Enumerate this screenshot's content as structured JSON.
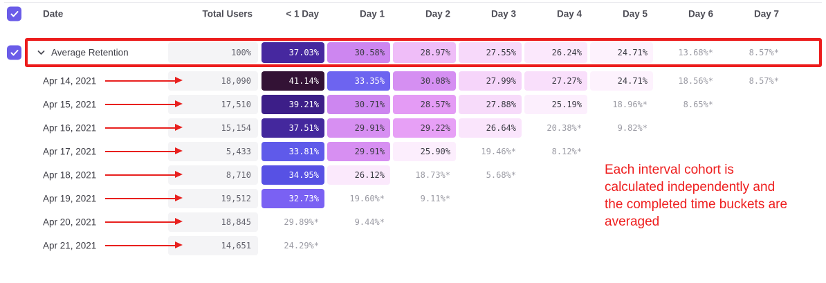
{
  "header": {
    "date_label": "Date",
    "total_label": "Total Users",
    "day_columns": [
      "< 1 Day",
      "Day 1",
      "Day 2",
      "Day 3",
      "Day 4",
      "Day 5",
      "Day 6",
      "Day 7"
    ]
  },
  "average_row": {
    "label": "Average Retention",
    "total": "100%",
    "cells": [
      {
        "t": "37.03%",
        "bg": "#46289F",
        "fg": "#FFFFFF"
      },
      {
        "t": "30.58%",
        "bg": "#CD86F0"
      },
      {
        "t": "28.97%",
        "bg": "#EFBDF8"
      },
      {
        "t": "27.55%",
        "bg": "#F7D9FA"
      },
      {
        "t": "26.24%",
        "bg": "#FBE8FC"
      },
      {
        "t": "24.71%",
        "bg": "#FDF2FD"
      },
      {
        "t": "13.68%*"
      },
      {
        "t": "8.57%*"
      }
    ]
  },
  "rows": [
    {
      "date": "Apr 14, 2021",
      "total": "18,090",
      "cells": [
        {
          "t": "41.14%",
          "bg": "#331235",
          "fg": "#FFFFFF"
        },
        {
          "t": "33.35%",
          "bg": "#6D64F0",
          "fg": "#FFFFFF"
        },
        {
          "t": "30.08%",
          "bg": "#D58FF2"
        },
        {
          "t": "27.99%",
          "bg": "#F6D5FA"
        },
        {
          "t": "27.27%",
          "bg": "#F9DFFB"
        },
        {
          "t": "24.71%",
          "bg": "#FDF2FD"
        },
        {
          "t": "18.56%*"
        },
        {
          "t": "8.57%*"
        }
      ]
    },
    {
      "date": "Apr 15, 2021",
      "total": "17,510",
      "cells": [
        {
          "t": "39.21%",
          "bg": "#3C1E88",
          "fg": "#FFFFFF"
        },
        {
          "t": "30.71%",
          "bg": "#CD86F0"
        },
        {
          "t": "28.57%",
          "bg": "#E49BF5"
        },
        {
          "t": "27.88%",
          "bg": "#F7DBFA"
        },
        {
          "t": "25.19%",
          "bg": "#FCEFFD"
        },
        {
          "t": "18.96%*"
        },
        {
          "t": "8.65%*"
        }
      ]
    },
    {
      "date": "Apr 16, 2021",
      "total": "15,154",
      "cells": [
        {
          "t": "37.51%",
          "bg": "#44289D",
          "fg": "#FFFFFF"
        },
        {
          "t": "29.91%",
          "bg": "#D78FF2"
        },
        {
          "t": "29.22%",
          "bg": "#E7A0F6"
        },
        {
          "t": "26.64%",
          "bg": "#FAE5FC"
        },
        {
          "t": "20.38%*"
        },
        {
          "t": "9.82%*"
        }
      ]
    },
    {
      "date": "Apr 17, 2021",
      "total": "5,433",
      "cells": [
        {
          "t": "33.81%",
          "bg": "#5F5AEA",
          "fg": "#FFFFFF"
        },
        {
          "t": "29.91%",
          "bg": "#D78FF2"
        },
        {
          "t": "25.90%",
          "bg": "#FCEEFD"
        },
        {
          "t": "19.46%*"
        },
        {
          "t": "8.12%*"
        }
      ]
    },
    {
      "date": "Apr 18, 2021",
      "total": "8,710",
      "cells": [
        {
          "t": "34.95%",
          "bg": "#5751E4",
          "fg": "#FFFFFF"
        },
        {
          "t": "26.12%",
          "bg": "#FBE9FC"
        },
        {
          "t": "18.73%*"
        },
        {
          "t": "5.68%*"
        }
      ]
    },
    {
      "date": "Apr 19, 2021",
      "total": "19,512",
      "cells": [
        {
          "t": "32.73%",
          "bg": "#7A61F3",
          "fg": "#FFFFFF"
        },
        {
          "t": "19.60%*"
        },
        {
          "t": "9.11%*"
        }
      ]
    },
    {
      "date": "Apr 20, 2021",
      "total": "18,845",
      "cells": [
        {
          "t": "29.89%*"
        },
        {
          "t": "9.44%*"
        }
      ]
    },
    {
      "date": "Apr 21, 2021",
      "total": "14,651",
      "cells": [
        {
          "t": "24.29%*"
        }
      ]
    }
  ],
  "annotation": {
    "lines": [
      "Each interval cohort is",
      "calculated independently and",
      "the completed time buckets are",
      "averaged"
    ],
    "color": "#EE1D1D"
  },
  "colors": {
    "accent_purple": "#6A5CE8",
    "highlight_red": "#EC1C1C",
    "muted_text": "#9B9BA4",
    "pill_gray": "#F4F4F6"
  },
  "icons": {
    "checkbox_check": "checkmark",
    "chevron": "chevron-down",
    "arrow": "arrow-right"
  }
}
